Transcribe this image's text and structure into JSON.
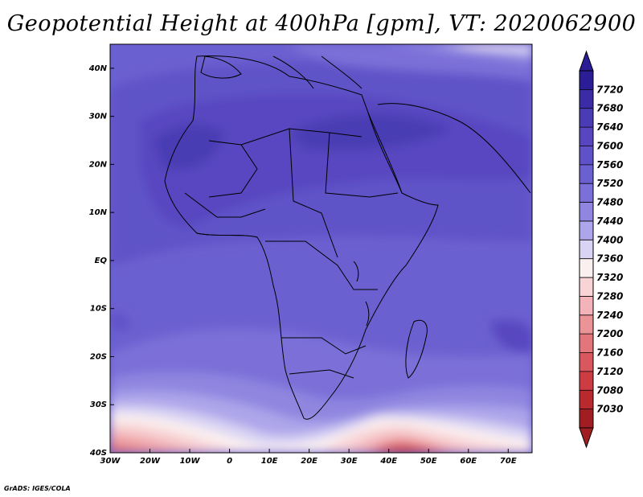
{
  "title": "Geopotential Height at 400hPa [gpm], VT: 2020062900",
  "credit": "GrADS: IGES/COLA",
  "map": {
    "lon_range": [
      -30,
      76
    ],
    "lat_range": [
      -40,
      45
    ],
    "lon_ticks": [
      {
        "value": -30,
        "label": "30W"
      },
      {
        "value": -20,
        "label": "20W"
      },
      {
        "value": -10,
        "label": "10W"
      },
      {
        "value": 0,
        "label": "0"
      },
      {
        "value": 10,
        "label": "10E"
      },
      {
        "value": 20,
        "label": "20E"
      },
      {
        "value": 30,
        "label": "30E"
      },
      {
        "value": 40,
        "label": "40E"
      },
      {
        "value": 50,
        "label": "50E"
      },
      {
        "value": 60,
        "label": "60E"
      },
      {
        "value": 70,
        "label": "70E"
      }
    ],
    "lat_ticks": [
      {
        "value": 40,
        "label": "40N"
      },
      {
        "value": 30,
        "label": "30N"
      },
      {
        "value": 20,
        "label": "20N"
      },
      {
        "value": 10,
        "label": "10N"
      },
      {
        "value": 0,
        "label": "EQ"
      },
      {
        "value": -10,
        "label": "10S"
      },
      {
        "value": -20,
        "label": "20S"
      },
      {
        "value": -30,
        "label": "30S"
      },
      {
        "value": -40,
        "label": "40S"
      }
    ]
  },
  "colorbar": {
    "levels": [
      "7720",
      "7680",
      "7640",
      "7600",
      "7560",
      "7520",
      "7480",
      "7440",
      "7400",
      "7360",
      "7320",
      "7280",
      "7240",
      "7200",
      "7160",
      "7120",
      "7080",
      "7030"
    ],
    "colors": [
      "#2a1d96",
      "#3b2ca6",
      "#4a3cb4",
      "#5846c0",
      "#5f52c8",
      "#6b60d0",
      "#7b70d8",
      "#9086e0",
      "#aea6ea",
      "#d9d4f4",
      "#fbf0f0",
      "#f8d4d6",
      "#f2b4b8",
      "#ea9498",
      "#e2767a",
      "#d8585e",
      "#cc3c42",
      "#b82a2e",
      "#a01e22"
    ]
  }
}
